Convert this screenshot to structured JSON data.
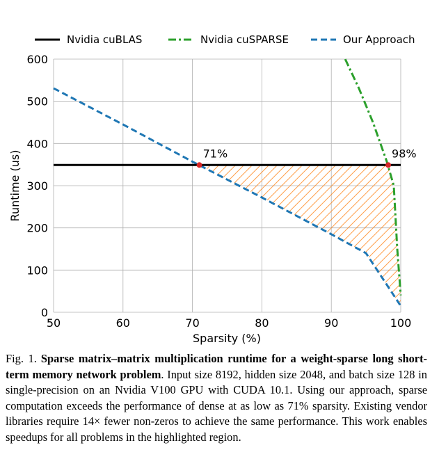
{
  "chart_data": {
    "type": "line",
    "xlabel": "Sparsity (%)",
    "ylabel": "Runtime (us)",
    "xlim": [
      50,
      100
    ],
    "ylim": [
      0,
      600
    ],
    "xticks": [
      50,
      60,
      70,
      80,
      90,
      100
    ],
    "yticks": [
      0,
      100,
      200,
      300,
      400,
      500,
      600
    ],
    "grid": true,
    "legend_position": "top",
    "series": [
      {
        "name": "Nvidia cuBLAS",
        "color": "#000000",
        "style": "solid",
        "points": [
          [
            50,
            349
          ],
          [
            100,
            349
          ]
        ]
      },
      {
        "name": "Nvidia cuSPARSE",
        "color": "#2ca02c",
        "style": "dashdot",
        "points": [
          [
            92,
            600
          ],
          [
            94,
            530
          ],
          [
            96,
            450
          ],
          [
            98,
            357
          ],
          [
            99,
            300
          ],
          [
            99.5,
            150
          ],
          [
            100,
            40
          ]
        ]
      },
      {
        "name": "Our Approach",
        "color": "#1f77b4",
        "style": "dashed",
        "points": [
          [
            50,
            531
          ],
          [
            60,
            445
          ],
          [
            70,
            357
          ],
          [
            80,
            272
          ],
          [
            90,
            185
          ],
          [
            95,
            140
          ],
          [
            100,
            15
          ]
        ]
      }
    ],
    "annotations": [
      {
        "label": "71%",
        "x": 71,
        "y": 349
      },
      {
        "label": "98%",
        "x": 98.2,
        "y": 349
      }
    ],
    "highlight_region": {
      "color": "#ff7f0e",
      "upper": [
        [
          71,
          349
        ],
        [
          98.2,
          349
        ],
        [
          99,
          300
        ],
        [
          99.5,
          150
        ],
        [
          100,
          40
        ]
      ],
      "lower": [
        [
          100,
          15
        ],
        [
          95,
          140
        ],
        [
          90,
          185
        ],
        [
          80,
          272
        ],
        [
          71,
          349
        ]
      ]
    }
  },
  "caption": {
    "fig_label": "Fig. 1.",
    "bold_text": "Sparse matrix–matrix multiplication runtime for a weight-sparse long short-term memory network problem",
    "body_text": ". Input size 8192, hidden size 2048, and batch size 128 in single-precision on an Nvidia V100 GPU with CUDA 10.1. Using our approach, sparse computation exceeds the performance of dense at as low as 71% sparsity. Existing vendor libraries require 14× fewer non-zeros to achieve the same performance. This work enables speedups for all problems in the highlighted region."
  }
}
